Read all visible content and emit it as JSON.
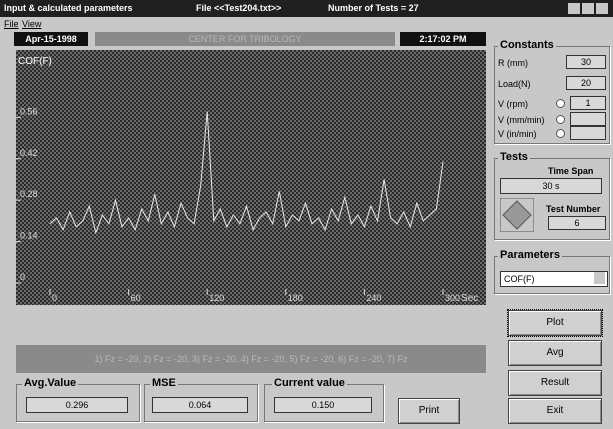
{
  "window": {
    "title": "Input & calculated parameters",
    "file": "File  <<Test204.txt>>",
    "tests": "Number of Tests  =  27"
  },
  "menu": [
    "File",
    "View"
  ],
  "header": {
    "date": "Apr-15-1998",
    "banner": "CENTER FOR TRIBOLOGY",
    "time": "2:17:02 PM"
  },
  "chart_data": {
    "type": "line",
    "y_label": "COF(F)",
    "x_unit": "Sec",
    "color": "#e8e8e8",
    "x": [
      0,
      5,
      10,
      15,
      20,
      25,
      30,
      35,
      40,
      45,
      50,
      55,
      60,
      65,
      70,
      75,
      80,
      85,
      90,
      95,
      100,
      105,
      110,
      115,
      120,
      125,
      130,
      135,
      140,
      145,
      150,
      155,
      160,
      165,
      170,
      175,
      180,
      185,
      190,
      195,
      200,
      205,
      210,
      215,
      220,
      225,
      230,
      235,
      240,
      245,
      250,
      255,
      260,
      265,
      270,
      275,
      280,
      285,
      290,
      295,
      300
    ],
    "values": [
      0.2,
      0.22,
      0.18,
      0.24,
      0.19,
      0.21,
      0.26,
      0.17,
      0.23,
      0.2,
      0.28,
      0.19,
      0.22,
      0.18,
      0.25,
      0.21,
      0.3,
      0.2,
      0.24,
      0.19,
      0.27,
      0.22,
      0.2,
      0.33,
      0.58,
      0.21,
      0.25,
      0.19,
      0.23,
      0.2,
      0.26,
      0.18,
      0.22,
      0.24,
      0.2,
      0.31,
      0.19,
      0.23,
      0.21,
      0.27,
      0.2,
      0.22,
      0.18,
      0.25,
      0.21,
      0.29,
      0.2,
      0.23,
      0.19,
      0.26,
      0.21,
      0.35,
      0.22,
      0.2,
      0.24,
      0.19,
      0.27,
      0.21,
      0.23,
      0.25,
      0.41
    ],
    "xlim": [
      0,
      300
    ],
    "xticks": [
      0,
      60,
      120,
      180,
      240,
      300
    ],
    "ylim": [
      0,
      0.72
    ],
    "yticks": [
      0,
      0.14,
      0.28,
      0.42,
      0.56
    ]
  },
  "legend_strip": "1) Fz = -20, 2) Fz = -20, 3) Fz = -20, 4) Fz = -20, 5) Fz = -20, 6) Fz = -20, 7) Fz",
  "stats": [
    {
      "label": "Avg.Value",
      "value": "0.296"
    },
    {
      "label": "MSE",
      "value": "0.064"
    },
    {
      "label": "Current value",
      "value": "0.150"
    }
  ],
  "print_button": "Print",
  "constants": {
    "title": "Constants",
    "rows": [
      {
        "label": "R (mm)",
        "value": "30"
      },
      {
        "label": "Load(N)",
        "value": "20"
      },
      {
        "label": "V (rpm)",
        "value": "1"
      },
      {
        "label": "V (mm/min)",
        "value": ""
      },
      {
        "label": "V (in/min)",
        "value": ""
      }
    ]
  },
  "tests": {
    "title": "Tests",
    "time_span_label": "Time Span",
    "time_span": "30 s",
    "test_number_label": "Test Number",
    "test_number": "6"
  },
  "parameters": {
    "title": "Parameters",
    "selected": "COF(F)"
  },
  "buttons": [
    "Plot",
    "Avg",
    "Result",
    "Exit"
  ]
}
